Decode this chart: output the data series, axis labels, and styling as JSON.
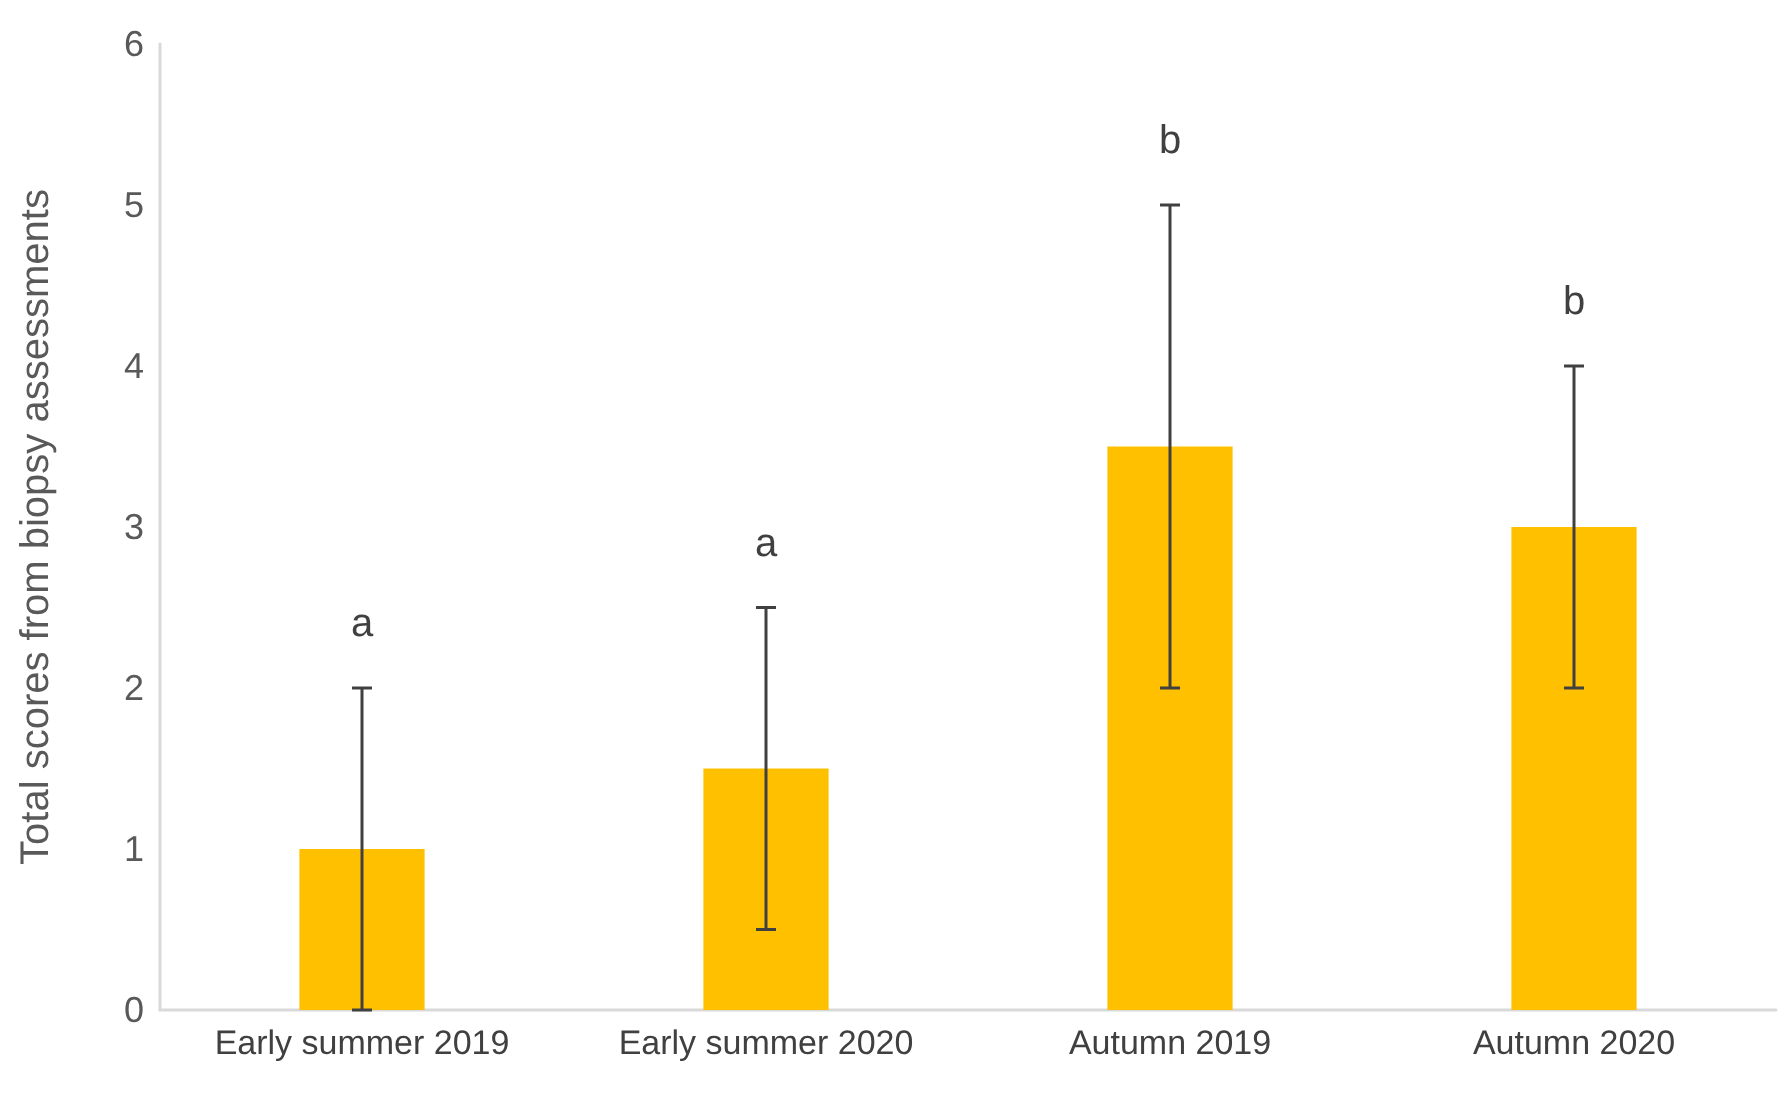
{
  "chart_data": {
    "type": "bar",
    "ylabel": "Total scores from biopsy assessments",
    "categories": [
      "Early summer 2019",
      "Early summer 2020",
      "Autumn 2019",
      "Autumn 2020"
    ],
    "values": [
      1,
      1.5,
      3.5,
      3
    ],
    "color": "#ffc000",
    "errors": [
      1,
      1,
      1.5,
      1
    ],
    "ylim": [
      0,
      6
    ],
    "yticks": [
      0,
      1,
      2,
      3,
      4,
      5,
      6
    ],
    "grid": false,
    "annotations": [
      "a",
      "a",
      "b",
      "b"
    ]
  }
}
